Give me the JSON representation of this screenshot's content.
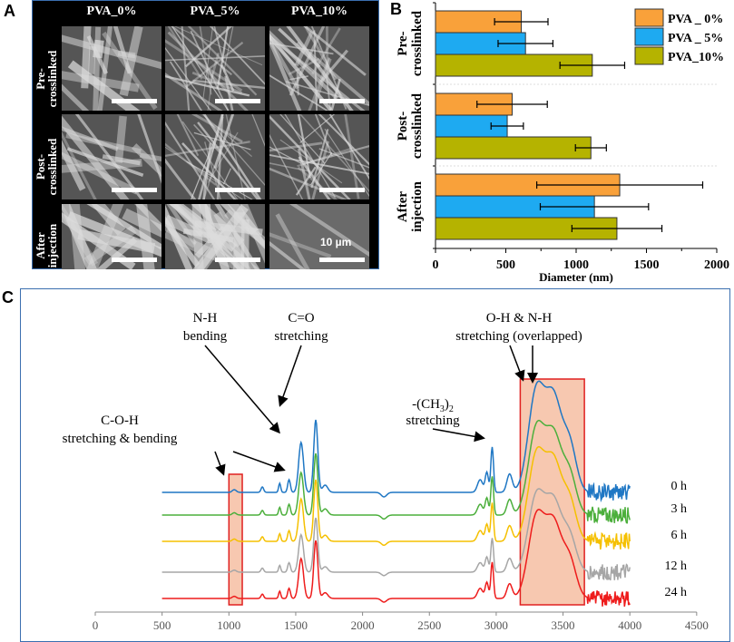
{
  "panels": {
    "a": "A",
    "b": "B",
    "c": "C"
  },
  "panel_a": {
    "columns": [
      "PVA_0%",
      "PVA_5%",
      "PVA_10%"
    ],
    "rows": [
      [
        "Pre-",
        "crosslinked"
      ],
      [
        "Post-",
        "crosslinked"
      ],
      [
        "After",
        "injection"
      ]
    ],
    "scale_bar": "10 µm"
  },
  "chart_data": [
    {
      "type": "bar",
      "orientation": "horizontal",
      "categories": [
        [
          "Pre-",
          "crosslinked"
        ],
        [
          "Post-",
          "crosslinked"
        ],
        [
          "After",
          "injection"
        ]
      ],
      "xlabel": "Diameter (nm)",
      "xlim": [
        0,
        2000
      ],
      "xticks": [
        "0",
        "500",
        "1000",
        "1500",
        "2000"
      ],
      "legend_position": "top-right",
      "series": [
        {
          "name": "PVA _ 0%",
          "color": "#f9a13a",
          "values": [
            610,
            545,
            1310
          ],
          "errors": [
            190,
            250,
            590
          ]
        },
        {
          "name": "PVA _ 5%",
          "color": "#1eaaf1",
          "values": [
            640,
            510,
            1130
          ],
          "errors": [
            195,
            115,
            385
          ]
        },
        {
          "name": "PVA_10%",
          "color": "#b5b300",
          "values": [
            1115,
            1105,
            1290
          ],
          "errors": [
            230,
            110,
            320
          ]
        }
      ]
    },
    {
      "type": "line",
      "xlim": [
        0,
        4500
      ],
      "xticks": [
        "0",
        "500",
        "1000",
        "1500",
        "2000",
        "2500",
        "3000",
        "3500",
        "4000",
        "4500"
      ],
      "x_range": [
        500,
        4000
      ],
      "series": [
        {
          "name": "0 h",
          "color": "#1f77c4"
        },
        {
          "name": "3 h",
          "color": "#4caf3c"
        },
        {
          "name": "6 h",
          "color": "#f5c000"
        },
        {
          "name": "12 h",
          "color": "#a6a6a6"
        },
        {
          "name": "24 h",
          "color": "#ee1c1c"
        }
      ],
      "peaks_cm1": [
        1040,
        1250,
        1380,
        1450,
        1540,
        1650,
        2930,
        2970,
        3100,
        3300,
        3420
      ],
      "annotations": [
        {
          "lines": [
            "C-O-H",
            "stretching & bending"
          ]
        },
        {
          "lines": [
            "N-H",
            "bending"
          ]
        },
        {
          "lines": [
            "C=O",
            "stretching"
          ]
        },
        {
          "lines": [
            "-(CH",
            "3",
            ")",
            "2",
            " stretching"
          ]
        },
        {
          "lines": [
            "O-H & N-H",
            "stretching (overlapped)"
          ]
        }
      ],
      "highlight_regions": [
        [
          1000,
          1100
        ],
        [
          3180,
          3660
        ]
      ],
      "highlight_color": "#f7c8b0"
    }
  ]
}
